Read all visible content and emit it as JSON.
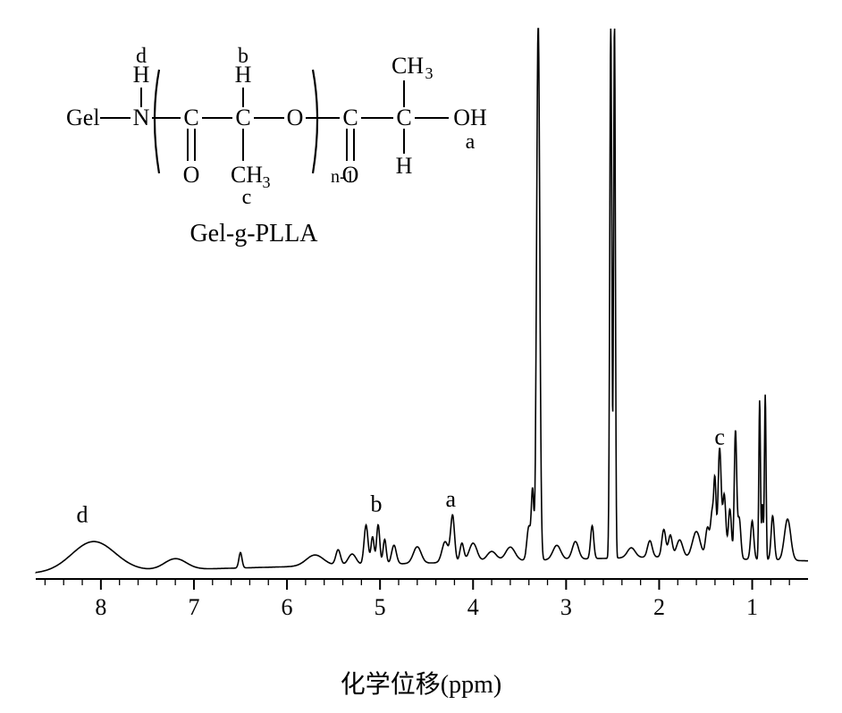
{
  "nmr": {
    "type": "line",
    "x_range": [
      8.7,
      0.4
    ],
    "xticks": [
      8,
      7,
      6,
      5,
      4,
      3,
      2,
      1
    ],
    "tick_fontsize": 26,
    "axis_label": "化学位移(ppm)",
    "axis_label_fontsize": 28,
    "stroke": "#000000",
    "stroke_width": 1.6,
    "baseline_y": 0.04,
    "ymax": 1.0,
    "peaks": [
      {
        "ppm": 8.08,
        "h": 0.055,
        "w": 0.55,
        "label": "d"
      },
      {
        "ppm": 7.2,
        "h": 0.02,
        "w": 0.28
      },
      {
        "ppm": 6.5,
        "h": 0.028,
        "w": 0.04
      },
      {
        "ppm": 5.7,
        "h": 0.02,
        "w": 0.22
      },
      {
        "ppm": 5.45,
        "h": 0.028,
        "w": 0.06
      },
      {
        "ppm": 5.3,
        "h": 0.02,
        "w": 0.1
      },
      {
        "ppm": 5.15,
        "h": 0.072,
        "w": 0.05
      },
      {
        "ppm": 5.08,
        "h": 0.05,
        "w": 0.04
      },
      {
        "ppm": 5.02,
        "h": 0.072,
        "w": 0.04,
        "label": "b"
      },
      {
        "ppm": 4.95,
        "h": 0.045,
        "w": 0.04
      },
      {
        "ppm": 4.85,
        "h": 0.034,
        "w": 0.06
      },
      {
        "ppm": 4.6,
        "h": 0.03,
        "w": 0.1
      },
      {
        "ppm": 4.3,
        "h": 0.038,
        "w": 0.08
      },
      {
        "ppm": 4.22,
        "h": 0.084,
        "w": 0.05,
        "label": "a"
      },
      {
        "ppm": 4.12,
        "h": 0.034,
        "w": 0.05
      },
      {
        "ppm": 4.0,
        "h": 0.034,
        "w": 0.1
      },
      {
        "ppm": 3.8,
        "h": 0.018,
        "w": 0.12
      },
      {
        "ppm": 3.6,
        "h": 0.025,
        "w": 0.12
      },
      {
        "ppm": 3.4,
        "h": 0.062,
        "w": 0.05
      },
      {
        "ppm": 3.36,
        "h": 0.12,
        "w": 0.03
      },
      {
        "ppm": 3.3,
        "h": 0.98,
        "w": 0.04
      },
      {
        "ppm": 3.1,
        "h": 0.026,
        "w": 0.1
      },
      {
        "ppm": 2.9,
        "h": 0.032,
        "w": 0.08
      },
      {
        "ppm": 2.72,
        "h": 0.06,
        "w": 0.04
      },
      {
        "ppm": 2.52,
        "h": 0.98,
        "w": 0.025
      },
      {
        "ppm": 2.48,
        "h": 0.98,
        "w": 0.022
      },
      {
        "ppm": 2.3,
        "h": 0.018,
        "w": 0.1
      },
      {
        "ppm": 2.1,
        "h": 0.03,
        "w": 0.06
      },
      {
        "ppm": 1.95,
        "h": 0.05,
        "w": 0.05
      },
      {
        "ppm": 1.88,
        "h": 0.04,
        "w": 0.05
      },
      {
        "ppm": 1.78,
        "h": 0.032,
        "w": 0.08
      },
      {
        "ppm": 1.6,
        "h": 0.048,
        "w": 0.1
      },
      {
        "ppm": 1.48,
        "h": 0.055,
        "w": 0.05
      },
      {
        "ppm": 1.43,
        "h": 0.08,
        "w": 0.04
      },
      {
        "ppm": 1.4,
        "h": 0.13,
        "w": 0.03
      },
      {
        "ppm": 1.35,
        "h": 0.2,
        "w": 0.04,
        "label": "c"
      },
      {
        "ppm": 1.3,
        "h": 0.115,
        "w": 0.04
      },
      {
        "ppm": 1.24,
        "h": 0.09,
        "w": 0.04
      },
      {
        "ppm": 1.18,
        "h": 0.23,
        "w": 0.03
      },
      {
        "ppm": 1.14,
        "h": 0.075,
        "w": 0.04
      },
      {
        "ppm": 1.0,
        "h": 0.07,
        "w": 0.04
      },
      {
        "ppm": 0.92,
        "h": 0.29,
        "w": 0.02
      },
      {
        "ppm": 0.89,
        "h": 0.1,
        "w": 0.02
      },
      {
        "ppm": 0.86,
        "h": 0.3,
        "w": 0.02
      },
      {
        "ppm": 0.78,
        "h": 0.08,
        "w": 0.04
      },
      {
        "ppm": 0.62,
        "h": 0.075,
        "w": 0.08
      }
    ],
    "peak_labels": {
      "d": {
        "ppm": 8.2,
        "yoff": -22
      },
      "b": {
        "ppm": 5.04,
        "yoff": -24
      },
      "a": {
        "ppm": 4.24,
        "yoff": -22
      },
      "c": {
        "ppm": 1.35,
        "yoff": -20
      }
    },
    "formula_title": "Gel-g-PLLA",
    "formula_text": {
      "Gel": "Gel",
      "N": "N",
      "H_on_N_label": "d",
      "H_on_N": "H",
      "C1": "C",
      "O1dbl": "O",
      "C2": "C",
      "H_b": "b",
      "C2H": "H",
      "CH3_c": "CH",
      "CH3_c_sub": "3",
      "c_label": "c",
      "O_ester": "O",
      "n_label": "n-1",
      "C3": "C",
      "O3dbl": "O",
      "C4": "C",
      "H4": "H",
      "CH3_top": "CH",
      "CH3_top_sub": "3",
      "OH": "OH",
      "a_label": "a"
    }
  }
}
